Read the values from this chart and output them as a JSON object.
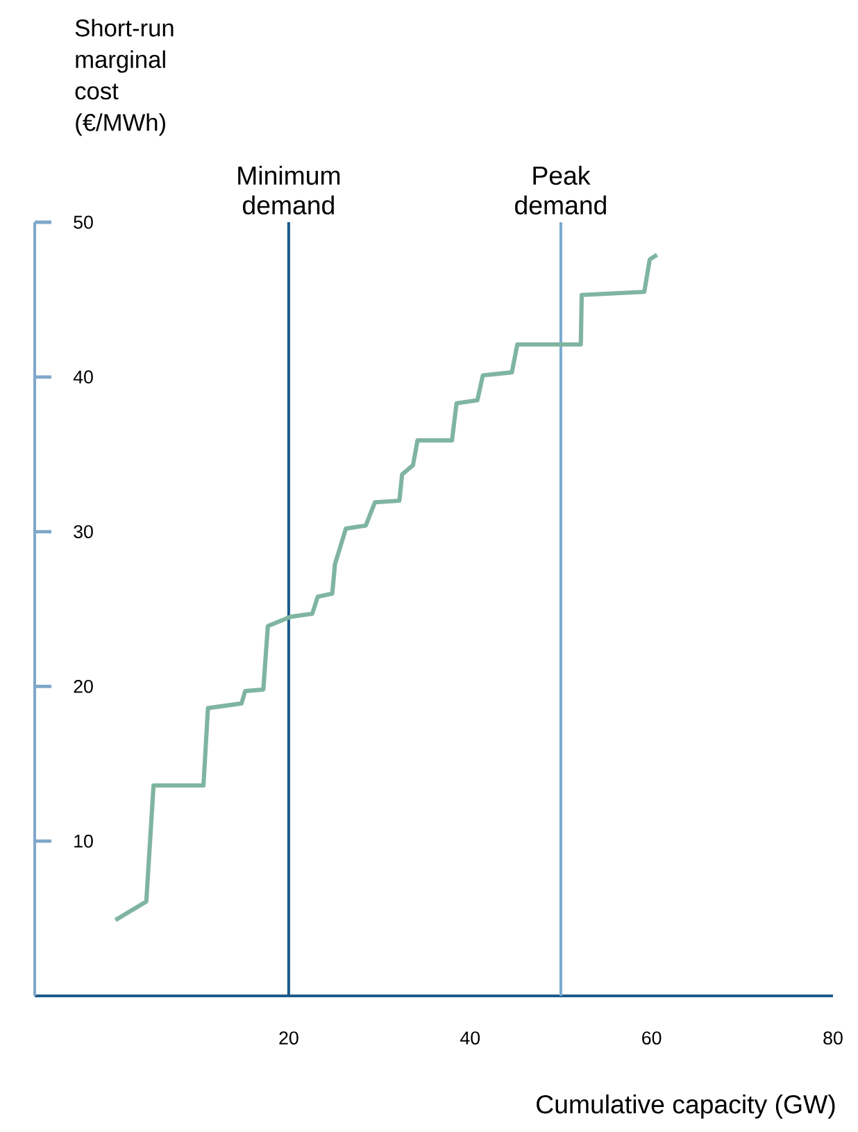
{
  "chart_data": {
    "type": "line",
    "xlabel": "Cumulative capacity (GW)",
    "ylabel": "Short-run marginal cost (€/MWh)",
    "x": [
      0.9,
      4.3,
      5.1,
      10.6,
      11.1,
      14.8,
      15.2,
      17.2,
      17.7,
      20.2,
      22.6,
      23.2,
      24.8,
      25.1,
      26.3,
      28.5,
      29.5,
      32.2,
      32.5,
      33.7,
      34.2,
      38,
      38.5,
      40.8,
      41.4,
      44.6,
      45.2,
      52.2,
      52.3,
      59.2,
      59.8,
      60.6
    ],
    "values": [
      4.9,
      6.1,
      13.6,
      13.6,
      18.6,
      18.9,
      19.7,
      19.8,
      23.9,
      24.5,
      24.7,
      25.8,
      26,
      27.9,
      30.2,
      30.4,
      31.9,
      32,
      33.7,
      34.3,
      35.9,
      35.9,
      38.3,
      38.5,
      40.1,
      40.3,
      42.1,
      42.1,
      45.3,
      45.5,
      47.6,
      47.9
    ],
    "color": "#7fb5a0",
    "xlim": [
      -8,
      80
    ],
    "ylim": [
      0,
      50
    ],
    "xticks": [
      20,
      40,
      60,
      80
    ],
    "yticks": [
      10,
      20,
      30,
      40,
      50
    ],
    "ref_lines": [
      {
        "axis": "x",
        "value": 20,
        "label": "Minimum demand",
        "color": "#1a5a8a"
      },
      {
        "axis": "x",
        "value": 50,
        "label": "Peak demand",
        "color": "#7aaad0"
      }
    ]
  }
}
